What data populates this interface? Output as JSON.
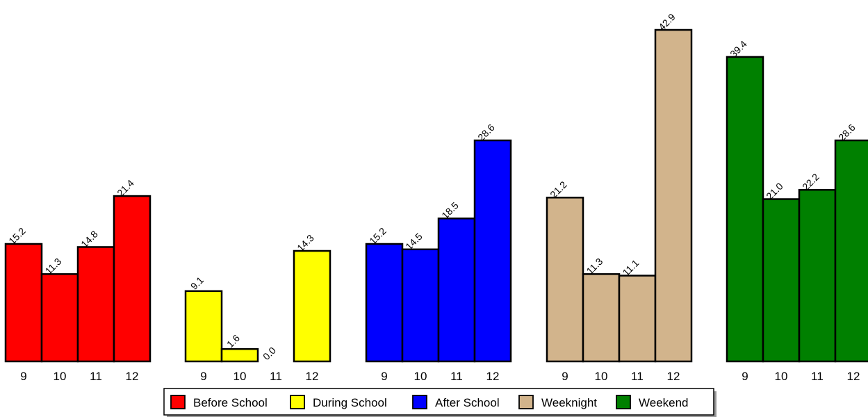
{
  "chart_data": {
    "type": "bar",
    "categories": [
      "9",
      "10",
      "11",
      "12"
    ],
    "series": [
      {
        "name": "Before School",
        "color": "#ff0000",
        "values": [
          15.2,
          11.3,
          14.8,
          21.4
        ],
        "labels": [
          "15.2",
          "11.3",
          "14.8",
          "21.4"
        ]
      },
      {
        "name": "During School",
        "color": "#ffff00",
        "values": [
          9.1,
          1.6,
          0.0,
          14.3
        ],
        "labels": [
          "9.1",
          "1.6",
          "0.0",
          "14.3"
        ]
      },
      {
        "name": "After School",
        "color": "#0000ff",
        "values": [
          15.2,
          14.5,
          18.5,
          28.6
        ],
        "labels": [
          "15.2",
          "14.5",
          "18.5",
          "28.6"
        ]
      },
      {
        "name": "Weeknight",
        "color": "#d2b48c",
        "values": [
          21.2,
          11.3,
          11.1,
          42.9
        ],
        "labels": [
          "21.2",
          "11.3",
          "11.1",
          "42.9"
        ]
      },
      {
        "name": "Weekend",
        "color": "#008000",
        "values": [
          39.4,
          21.0,
          22.2,
          28.6
        ],
        "labels": [
          "39.4",
          "21.0",
          "22.2",
          "28.6"
        ]
      }
    ],
    "ylim": [
      0,
      42.9
    ],
    "grid": false,
    "legend_position": "bottom-center",
    "title": "",
    "xlabel": "",
    "ylabel": ""
  }
}
